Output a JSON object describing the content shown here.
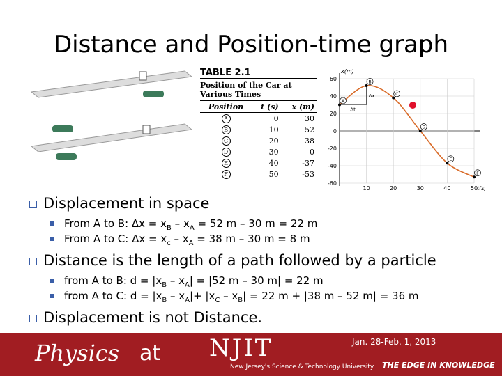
{
  "title": "Distance and Position-time graph",
  "table": {
    "caption": "TABLE 2.1",
    "heading": "Position of the Car at Various Times",
    "columns": [
      "Position",
      "t (s)",
      "x (m)"
    ],
    "rows": [
      [
        "A",
        0,
        30
      ],
      [
        "B",
        10,
        52
      ],
      [
        "C",
        20,
        38
      ],
      [
        "D",
        30,
        0
      ],
      [
        "E",
        40,
        -37
      ],
      [
        "F",
        50,
        -53
      ]
    ]
  },
  "graph": {
    "y_label": "x(m)",
    "x_label": "t(s)",
    "yticks": [
      60,
      40,
      20,
      0,
      -20,
      -40,
      -60
    ],
    "xticks": [
      10,
      20,
      30,
      40,
      50
    ],
    "ylim": [
      -60,
      60
    ],
    "xlim": [
      0,
      50
    ],
    "dx_label": "Δx",
    "dt_label": "Δt"
  },
  "bullets": [
    {
      "text": "Displacement in space",
      "sub": [
        [
          "From A to B: Δx = x",
          "B",
          " – x",
          "A",
          " = 52 m – 30 m = 22 m"
        ],
        [
          "From A to C: Δx = x",
          "c",
          " – x",
          "A",
          " = 38 m – 30 m = 8 m"
        ]
      ]
    },
    {
      "text": "Distance is the length of a path followed by a particle",
      "sub": [
        [
          "from A to B: d = |x",
          "B",
          " – x",
          "A",
          "| = |52 m – 30 m| = 22 m"
        ],
        [
          "from A to C: d = |x",
          "B",
          " – x",
          "A",
          "|+ |x",
          "C",
          " – x",
          "B",
          "| = 22 m + |38 m – 52 m| = 36 m"
        ]
      ]
    },
    {
      "text": "Displacement is not Distance.",
      "sub": []
    }
  ],
  "footer": {
    "brand_left": "Physics",
    "brand_mid": "at",
    "brand_right": "NJIT",
    "university": "New Jersey's Science & Technology University",
    "date": "Jan. 28-Feb. 1, 2013",
    "slogan": "THE EDGE IN KNOWLEDGE"
  }
}
